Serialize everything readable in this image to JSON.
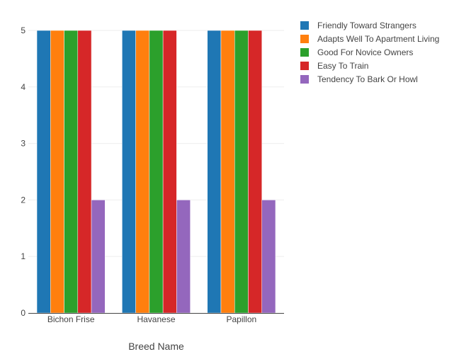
{
  "chart_data": {
    "type": "bar",
    "categories": [
      "Bichon Frise",
      "Havanese",
      "Papillon"
    ],
    "series": [
      {
        "name": "Friendly Toward Strangers",
        "values": [
          5,
          5,
          5
        ],
        "color": "#1f77b4"
      },
      {
        "name": "Adapts Well To Apartment Living",
        "values": [
          5,
          5,
          5
        ],
        "color": "#ff7f0e"
      },
      {
        "name": "Good For Novice Owners",
        "values": [
          5,
          5,
          5
        ],
        "color": "#2ca02c"
      },
      {
        "name": "Easy To Train",
        "values": [
          5,
          5,
          5
        ],
        "color": "#d62728"
      },
      {
        "name": "Tendency To Bark Or Howl",
        "values": [
          2,
          2,
          2
        ],
        "color": "#9467bd"
      }
    ],
    "xlabel": "Breed Name",
    "ylabel": "",
    "ylim": [
      0,
      5
    ],
    "yticks": [
      0,
      1,
      2,
      3,
      4,
      5
    ],
    "grid": true,
    "legend_position": "top-right"
  }
}
